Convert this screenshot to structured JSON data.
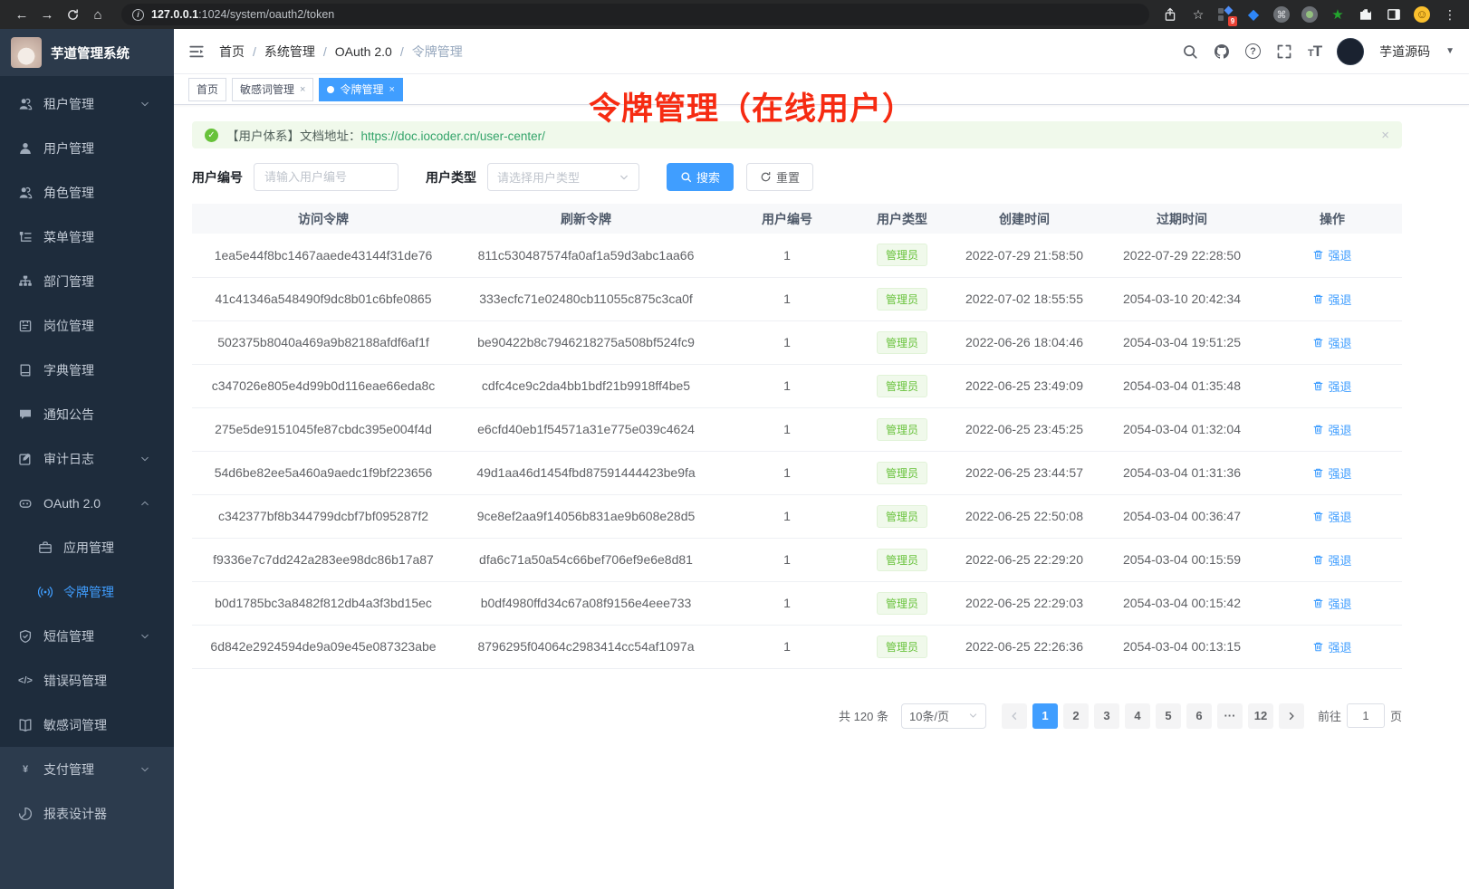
{
  "colors": {
    "primary": "#409eff",
    "success": "#67c23a",
    "success_bg": "#f0f9eb",
    "success_border": "#e1f3d8",
    "annotation": "#f62b12",
    "link_green": "#34a46a",
    "sidebar_bg": "#1e2c3c",
    "sidebar_bg_light": "#2c3b4d"
  },
  "browser": {
    "url_host": "127.0.0.1",
    "url_rest": ":1024/system/oauth2/token",
    "extension_badge": "9"
  },
  "app_title": "芋道管理系统",
  "sidebar": {
    "items": [
      {
        "key": "tenant",
        "label": "租户管理",
        "icon": "tenants-icon",
        "chevron": "down"
      },
      {
        "key": "user",
        "label": "用户管理",
        "icon": "user-icon"
      },
      {
        "key": "role",
        "label": "角色管理",
        "icon": "roles-icon"
      },
      {
        "key": "menu",
        "label": "菜单管理",
        "icon": "menu-icon"
      },
      {
        "key": "dept",
        "label": "部门管理",
        "icon": "dept-icon"
      },
      {
        "key": "post",
        "label": "岗位管理",
        "icon": "post-icon"
      },
      {
        "key": "dict",
        "label": "字典管理",
        "icon": "dict-icon"
      },
      {
        "key": "notice",
        "label": "通知公告",
        "icon": "notice-icon"
      },
      {
        "key": "audit-log",
        "label": "审计日志",
        "icon": "audit-icon",
        "chevron": "down"
      },
      {
        "key": "oauth2",
        "label": "OAuth 2.0",
        "icon": "oauth-icon",
        "chevron": "up"
      },
      {
        "key": "oauth2-app",
        "label": "应用管理",
        "icon": "app-icon",
        "sub": true
      },
      {
        "key": "oauth2-token",
        "label": "令牌管理",
        "icon": "token-icon",
        "sub": true,
        "active": true
      },
      {
        "key": "sms",
        "label": "短信管理",
        "icon": "sms-shield-icon",
        "chevron": "down"
      },
      {
        "key": "errcode",
        "label": "错误码管理",
        "icon": "code-icon"
      },
      {
        "key": "sensitive",
        "label": "敏感词管理",
        "icon": "open-book-icon"
      },
      {
        "key": "pay",
        "label": "支付管理",
        "icon": "yen-icon",
        "chevron": "down",
        "section": 2
      },
      {
        "key": "report",
        "label": "报表设计器",
        "icon": "report-icon",
        "section": 2
      }
    ]
  },
  "navbar": {
    "breadcrumb": [
      "首页",
      "系统管理",
      "OAuth 2.0",
      "令牌管理"
    ],
    "user_name": "芋道源码"
  },
  "tags": [
    {
      "label": "首页"
    },
    {
      "label": "敏感词管理",
      "closable": true
    },
    {
      "label": "令牌管理",
      "closable": true,
      "active": true
    }
  ],
  "annotation": "令牌管理（在线用户）",
  "alert": {
    "text": "【用户体系】文档地址：",
    "link": "https://doc.iocoder.cn/user-center/"
  },
  "filters": {
    "user_id_label": "用户编号",
    "user_id_placeholder": "请输入用户编号",
    "user_type_label": "用户类型",
    "user_type_placeholder": "请选择用户类型",
    "search_label": "搜索",
    "reset_label": "重置"
  },
  "table": {
    "columns": [
      {
        "key": "access-token",
        "label": "访问令牌"
      },
      {
        "key": "refresh-token",
        "label": "刷新令牌"
      },
      {
        "key": "user-id",
        "label": "用户编号"
      },
      {
        "key": "user-type",
        "label": "用户类型"
      },
      {
        "key": "created-at",
        "label": "创建时间"
      },
      {
        "key": "expires-at",
        "label": "过期时间"
      },
      {
        "key": "actions",
        "label": "操作"
      }
    ],
    "rows": [
      {
        "access": "1ea5e44f8bc1467aaede43144f31de76",
        "refresh": "811c530487574fa0af1a59d3abc1aa66",
        "user_id": "1",
        "user_type": "管理员",
        "created": "2022-07-29 21:58:50",
        "expires": "2022-07-29 22:28:50",
        "action": "强退"
      },
      {
        "access": "41c41346a548490f9dc8b01c6bfe0865",
        "refresh": "333ecfc71e02480cb11055c875c3ca0f",
        "user_id": "1",
        "user_type": "管理员",
        "created": "2022-07-02 18:55:55",
        "expires": "2054-03-10 20:42:34",
        "action": "强退"
      },
      {
        "access": "502375b8040a469a9b82188afdf6af1f",
        "refresh": "be90422b8c7946218275a508bf524fc9",
        "user_id": "1",
        "user_type": "管理员",
        "created": "2022-06-26 18:04:46",
        "expires": "2054-03-04 19:51:25",
        "action": "强退"
      },
      {
        "access": "c347026e805e4d99b0d116eae66eda8c",
        "refresh": "cdfc4ce9c2da4bb1bdf21b9918ff4be5",
        "user_id": "1",
        "user_type": "管理员",
        "created": "2022-06-25 23:49:09",
        "expires": "2054-03-04 01:35:48",
        "action": "强退"
      },
      {
        "access": "275e5de9151045fe87cbdc395e004f4d",
        "refresh": "e6cfd40eb1f54571a31e775e039c4624",
        "user_id": "1",
        "user_type": "管理员",
        "created": "2022-06-25 23:45:25",
        "expires": "2054-03-04 01:32:04",
        "action": "强退"
      },
      {
        "access": "54d6be82ee5a460a9aedc1f9bf223656",
        "refresh": "49d1aa46d1454fbd87591444423be9fa",
        "user_id": "1",
        "user_type": "管理员",
        "created": "2022-06-25 23:44:57",
        "expires": "2054-03-04 01:31:36",
        "action": "强退"
      },
      {
        "access": "c342377bf8b344799dcbf7bf095287f2",
        "refresh": "9ce8ef2aa9f14056b831ae9b608e28d5",
        "user_id": "1",
        "user_type": "管理员",
        "created": "2022-06-25 22:50:08",
        "expires": "2054-03-04 00:36:47",
        "action": "强退"
      },
      {
        "access": "f9336e7c7dd242a283ee98dc86b17a87",
        "refresh": "dfa6c71a50a54c66bef706ef9e6e8d81",
        "user_id": "1",
        "user_type": "管理员",
        "created": "2022-06-25 22:29:20",
        "expires": "2054-03-04 00:15:59",
        "action": "强退"
      },
      {
        "access": "b0d1785bc3a8482f812db4a3f3bd15ec",
        "refresh": "b0df4980ffd34c67a08f9156e4eee733",
        "user_id": "1",
        "user_type": "管理员",
        "created": "2022-06-25 22:29:03",
        "expires": "2054-03-04 00:15:42",
        "action": "强退"
      },
      {
        "access": "6d842e2924594de9a09e45e087323abe",
        "refresh": "8796295f04064c2983414cc54af1097a",
        "user_id": "1",
        "user_type": "管理员",
        "created": "2022-06-25 22:26:36",
        "expires": "2054-03-04 00:13:15",
        "action": "强退"
      }
    ]
  },
  "pagination": {
    "total": "共 120 条",
    "page_size": "10条/页",
    "pages": [
      "1",
      "2",
      "3",
      "4",
      "5",
      "6",
      "···",
      "12"
    ],
    "active_page": "1",
    "goto_label": "前往",
    "goto_value": "1",
    "page_unit": "页"
  }
}
